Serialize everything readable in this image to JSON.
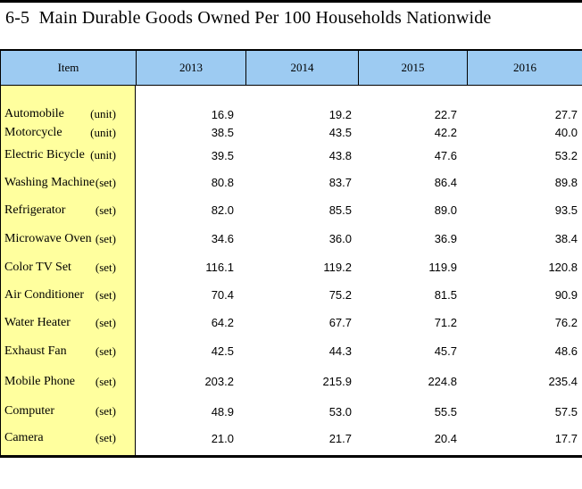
{
  "title": "6-5  Main Durable Goods Owned Per 100 Households Nationwide",
  "colors": {
    "header_bg": "#9DCBF2",
    "item_bg": "#FFFF9E",
    "border": "#000000"
  },
  "table": {
    "columns": [
      "Item",
      "2013",
      "2014",
      "2015",
      "2016"
    ],
    "rows": [
      {
        "item": "Automobile",
        "unit": "(unit)",
        "values": [
          "16.9",
          "19.2",
          "22.7",
          "27.7"
        ]
      },
      {
        "item": "Motorcycle",
        "unit": "(unit)",
        "values": [
          "38.5",
          "43.5",
          "42.2",
          "40.0"
        ]
      },
      {
        "item": "Electric Bicycle",
        "unit": "(unit)",
        "values": [
          "39.5",
          "43.8",
          "47.6",
          "53.2"
        ]
      },
      {
        "item": "Washing Machine",
        "unit": "(set)",
        "values": [
          "80.8",
          "83.7",
          "86.4",
          "89.8"
        ]
      },
      {
        "item": "Refrigerator",
        "unit": "(set)",
        "values": [
          "82.0",
          "85.5",
          "89.0",
          "93.5"
        ]
      },
      {
        "item": "Microwave Oven",
        "unit": "(set)",
        "values": [
          "34.6",
          "36.0",
          "36.9",
          "38.4"
        ]
      },
      {
        "item": "Color TV Set",
        "unit": "(set)",
        "values": [
          "116.1",
          "119.2",
          "119.9",
          "120.8"
        ]
      },
      {
        "item": "Air Conditioner",
        "unit": "(set)",
        "values": [
          "70.4",
          "75.2",
          "81.5",
          "90.9"
        ]
      },
      {
        "item": "Water Heater",
        "unit": "(set)",
        "values": [
          "64.2",
          "67.7",
          "71.2",
          "76.2"
        ]
      },
      {
        "item": "Exhaust Fan",
        "unit": "(set)",
        "values": [
          "42.5",
          "44.3",
          "45.7",
          "48.6"
        ]
      },
      {
        "item": "Mobile Phone",
        "unit": "(set)",
        "values": [
          "203.2",
          "215.9",
          "224.8",
          "235.4"
        ]
      },
      {
        "item": "Computer",
        "unit": "(set)",
        "values": [
          "48.9",
          "53.0",
          "55.5",
          "57.5"
        ]
      },
      {
        "item": "Camera",
        "unit": "(set)",
        "values": [
          "21.0",
          "21.7",
          "20.4",
          "17.7"
        ]
      }
    ]
  }
}
